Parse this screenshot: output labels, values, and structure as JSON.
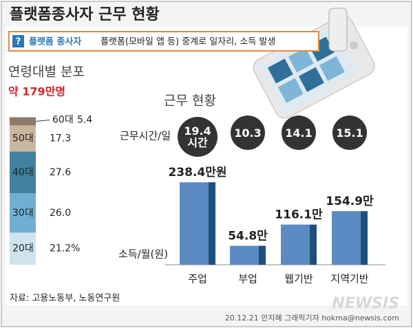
{
  "title": "플랫폼종사자 근무 현황",
  "subtitle": {
    "icon": "?",
    "term": "플랫폼 종사자",
    "definition": "플랫폼(모바일 앱 등) 중계로 일자리, 소득 발생"
  },
  "chart_data": [
    {
      "type": "stacked-bar",
      "title": "연령대별 분포",
      "total": "약 179만명",
      "categories": [
        "20대",
        "30대",
        "40대",
        "50대",
        "60대"
      ],
      "values": [
        21.2,
        26.0,
        27.6,
        17.3,
        5.4
      ],
      "value_labels": [
        "21.2%",
        "26.0",
        "27.6",
        "17.3",
        "5.4"
      ],
      "colors": [
        "#cfe3ef",
        "#6fb0d2",
        "#3f819f",
        "#c9b69e",
        "#8e7a6b"
      ]
    },
    {
      "type": "bar",
      "title": "근무 현황",
      "categories": [
        "주업",
        "부업",
        "웹기반",
        "지역기반"
      ],
      "series": [
        {
          "name": "근무시간/일",
          "type": "circle",
          "color": "#333333",
          "values": [
            19.4,
            10.3,
            14.1,
            15.1
          ],
          "value_labels": [
            "19.4 시간",
            "10.3",
            "14.1",
            "15.1"
          ]
        },
        {
          "name": "소득/월(원)",
          "type": "bar",
          "color": "#5a8bc2",
          "values": [
            238.4,
            54.8,
            116.1,
            154.9
          ],
          "value_labels": [
            "238.4만원",
            "54.8만",
            "116.1만",
            "154.9만"
          ]
        }
      ]
    }
  ],
  "source": "자료: 고용노동부, 노동연구원",
  "logo": "NEWSIS",
  "credit": "20.12.21 안지혜 그래픽기자 hokma@newsis.com"
}
